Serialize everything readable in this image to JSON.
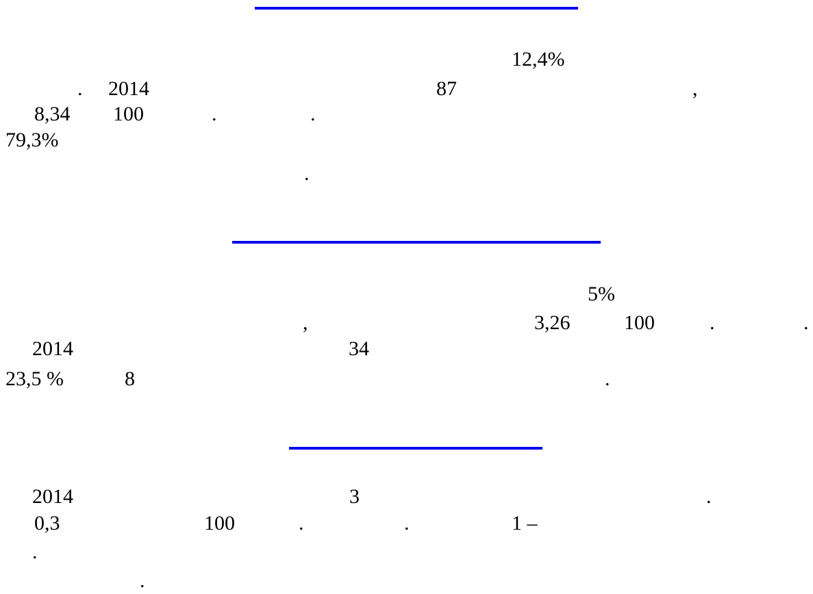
{
  "colors": {
    "heading_rule": "#0000ee",
    "text": "#000000",
    "background": "#ffffff"
  },
  "section1": {
    "heading": "",
    "lines": [
      [
        "12,4%"
      ],
      [
        ".",
        "2014",
        "87",
        ","
      ],
      [
        "8,34",
        "100",
        ".",
        "."
      ],
      [
        "79,3%"
      ],
      [
        "."
      ]
    ]
  },
  "section2": {
    "heading": "",
    "lines": [
      [
        "5%"
      ],
      [
        ",",
        "3,26",
        "100",
        ".",
        "."
      ],
      [
        "2014",
        "34"
      ],
      [
        "23,5 %",
        "8",
        "."
      ]
    ]
  },
  "section3": {
    "heading": "",
    "lines": [
      [
        "2014",
        "3",
        "."
      ],
      [
        "0,3",
        "100",
        ".",
        ".",
        "1 –"
      ],
      [
        "."
      ],
      [
        "."
      ]
    ]
  }
}
